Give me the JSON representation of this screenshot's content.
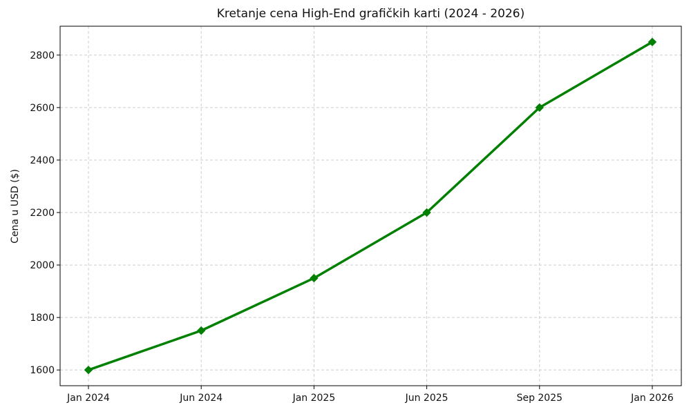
{
  "chart_data": {
    "type": "line",
    "title": "Kretanje cena High-End grafičkih karti (2024 - 2026)",
    "xlabel": "",
    "ylabel": "Cena u USD ($)",
    "categories": [
      "Jan 2024",
      "Jun 2024",
      "Jan 2025",
      "Jun 2025",
      "Sep 2025",
      "Jan 2026"
    ],
    "series": [
      {
        "values": [
          1600,
          1750,
          1950,
          2200,
          2600,
          2850
        ]
      }
    ],
    "yticks": [
      1600,
      1800,
      2000,
      2200,
      2400,
      2600,
      2800
    ],
    "ylim": [
      1540,
      2910
    ],
    "grid": true,
    "marker": "diamond",
    "line_color": "#008000"
  }
}
